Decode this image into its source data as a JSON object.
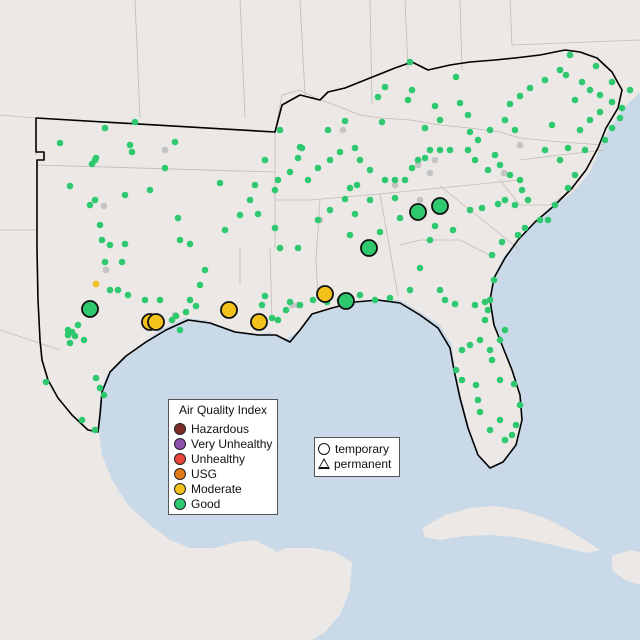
{
  "legend": {
    "title": "Air Quality Index",
    "items": [
      {
        "label": "Hazardous",
        "color": "#7e2b26"
      },
      {
        "label": "Very Unhealthy",
        "color": "#8f4fae"
      },
      {
        "label": "Unhealthy",
        "color": "#e8463a"
      },
      {
        "label": "USG",
        "color": "#e47a16"
      },
      {
        "label": "Moderate",
        "color": "#f3c21a"
      },
      {
        "label": "Good",
        "color": "#2ec96e"
      }
    ]
  },
  "monitor_types": {
    "temporary": "temporary",
    "permanent": "permanent"
  },
  "colors": {
    "water": "#c9d9e8",
    "land": "#ebe8e5",
    "boundary": "#000000",
    "no_data": "#c4c4c4"
  }
}
